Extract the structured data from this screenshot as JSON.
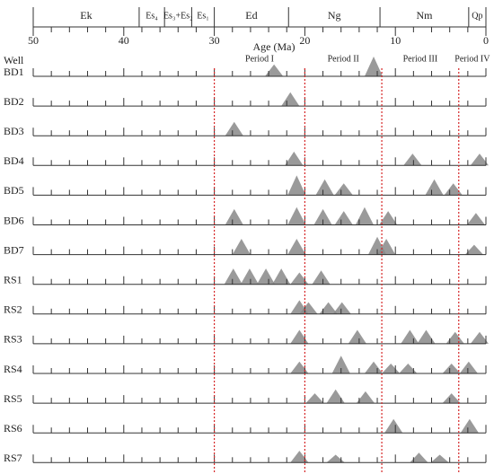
{
  "chart_data": {
    "type": "event-triangles",
    "x_label": "Age (Ma)",
    "row_label": "Well",
    "xlim": [
      50,
      0
    ],
    "xticks": [
      50,
      40,
      30,
      20,
      10,
      0
    ],
    "xminorticks": [
      48,
      46,
      44,
      42,
      38,
      36,
      34,
      32,
      28,
      26,
      24,
      22,
      18,
      16,
      14,
      12,
      8,
      6,
      4,
      2
    ],
    "units": [
      {
        "label": "Ek",
        "start": 50,
        "end": 38.3
      },
      {
        "label": "Es₄",
        "start": 38.3,
        "end": 35.5
      },
      {
        "label": "Es₃+Es₂",
        "start": 35.5,
        "end": 32.5
      },
      {
        "label": "Es₁",
        "start": 32.5,
        "end": 30
      },
      {
        "label": "Ed",
        "start": 30,
        "end": 21.8
      },
      {
        "label": "Ng",
        "start": 21.8,
        "end": 11.7
      },
      {
        "label": "Nm",
        "start": 11.7,
        "end": 1.9
      },
      {
        "label": "Qp",
        "start": 1.9,
        "end": 0
      }
    ],
    "period_boundaries": [
      30,
      20,
      11.5,
      3
    ],
    "periods": [
      "Period I",
      "Period II",
      "Period III",
      "Period IV"
    ],
    "period_color": "#d62728",
    "color": "#888888",
    "wells": [
      {
        "name": "BD1",
        "peaks": [
          {
            "age": 23.4,
            "height": 0.6
          },
          {
            "age": 12.4,
            "height": 1
          }
        ]
      },
      {
        "name": "BD2",
        "peaks": [
          {
            "age": 21.6,
            "height": 0.7
          }
        ]
      },
      {
        "name": "BD3",
        "peaks": [
          {
            "age": 27.8,
            "height": 0.7
          }
        ]
      },
      {
        "name": "BD4",
        "peaks": [
          {
            "age": 21.2,
            "height": 0.7
          },
          {
            "age": 8.1,
            "height": 0.6
          },
          {
            "age": 0.7,
            "height": 0.6
          }
        ]
      },
      {
        "name": "BD5",
        "peaks": [
          {
            "age": 20.9,
            "height": 1
          },
          {
            "age": 17.8,
            "height": 0.8
          },
          {
            "age": 15.7,
            "height": 0.6
          },
          {
            "age": 5.7,
            "height": 0.8
          },
          {
            "age": 3.6,
            "height": 0.6
          }
        ]
      },
      {
        "name": "BD6",
        "peaks": [
          {
            "age": 27.8,
            "height": 0.8
          },
          {
            "age": 20.9,
            "height": 0.9
          },
          {
            "age": 18,
            "height": 0.8
          },
          {
            "age": 15.7,
            "height": 0.7
          },
          {
            "age": 13.4,
            "height": 0.9
          },
          {
            "age": 10.8,
            "height": 0.7
          },
          {
            "age": 1.1,
            "height": 0.6
          }
        ]
      },
      {
        "name": "BD7",
        "peaks": [
          {
            "age": 27,
            "height": 0.8
          },
          {
            "age": 20.9,
            "height": 0.8
          },
          {
            "age": 12,
            "height": 0.9
          },
          {
            "age": 11,
            "height": 0.8
          },
          {
            "age": 1.3,
            "height": 0.5
          }
        ]
      },
      {
        "name": "RS1",
        "peaks": [
          {
            "age": 27.9,
            "height": 0.8
          },
          {
            "age": 26.1,
            "height": 0.8
          },
          {
            "age": 24.3,
            "height": 0.8
          },
          {
            "age": 22.6,
            "height": 0.8
          },
          {
            "age": 20.6,
            "height": 0.6
          },
          {
            "age": 18.2,
            "height": 0.7
          }
        ]
      },
      {
        "name": "RS2",
        "peaks": [
          {
            "age": 20.6,
            "height": 0.7
          },
          {
            "age": 19.6,
            "height": 0.6
          },
          {
            "age": 17.4,
            "height": 0.6
          },
          {
            "age": 15.9,
            "height": 0.6
          }
        ]
      },
      {
        "name": "RS3",
        "peaks": [
          {
            "age": 20.6,
            "height": 0.7
          },
          {
            "age": 14.2,
            "height": 0.7
          },
          {
            "age": 8.4,
            "height": 0.7
          },
          {
            "age": 6.6,
            "height": 0.7
          },
          {
            "age": 3.4,
            "height": 0.6
          },
          {
            "age": 0.7,
            "height": 0.6
          }
        ]
      },
      {
        "name": "RS4",
        "peaks": [
          {
            "age": 20.6,
            "height": 0.6
          },
          {
            "age": 16,
            "height": 0.9
          },
          {
            "age": 12.4,
            "height": 0.6
          },
          {
            "age": 10.5,
            "height": 0.5
          },
          {
            "age": 8.6,
            "height": 0.5
          },
          {
            "age": 3.8,
            "height": 0.5
          },
          {
            "age": 1.9,
            "height": 0.6
          }
        ]
      },
      {
        "name": "RS5",
        "peaks": [
          {
            "age": 18.9,
            "height": 0.5
          },
          {
            "age": 16.6,
            "height": 0.7
          },
          {
            "age": 13.3,
            "height": 0.6
          },
          {
            "age": 3.8,
            "height": 0.5
          }
        ]
      },
      {
        "name": "RS6",
        "peaks": [
          {
            "age": 10.2,
            "height": 0.7
          },
          {
            "age": 1.8,
            "height": 0.7
          }
        ]
      },
      {
        "name": "RS7",
        "peaks": [
          {
            "age": 20.6,
            "height": 0.6
          },
          {
            "age": 16.6,
            "height": 0.4
          },
          {
            "age": 7.4,
            "height": 0.5
          },
          {
            "age": 5.1,
            "height": 0.4
          }
        ]
      }
    ]
  }
}
